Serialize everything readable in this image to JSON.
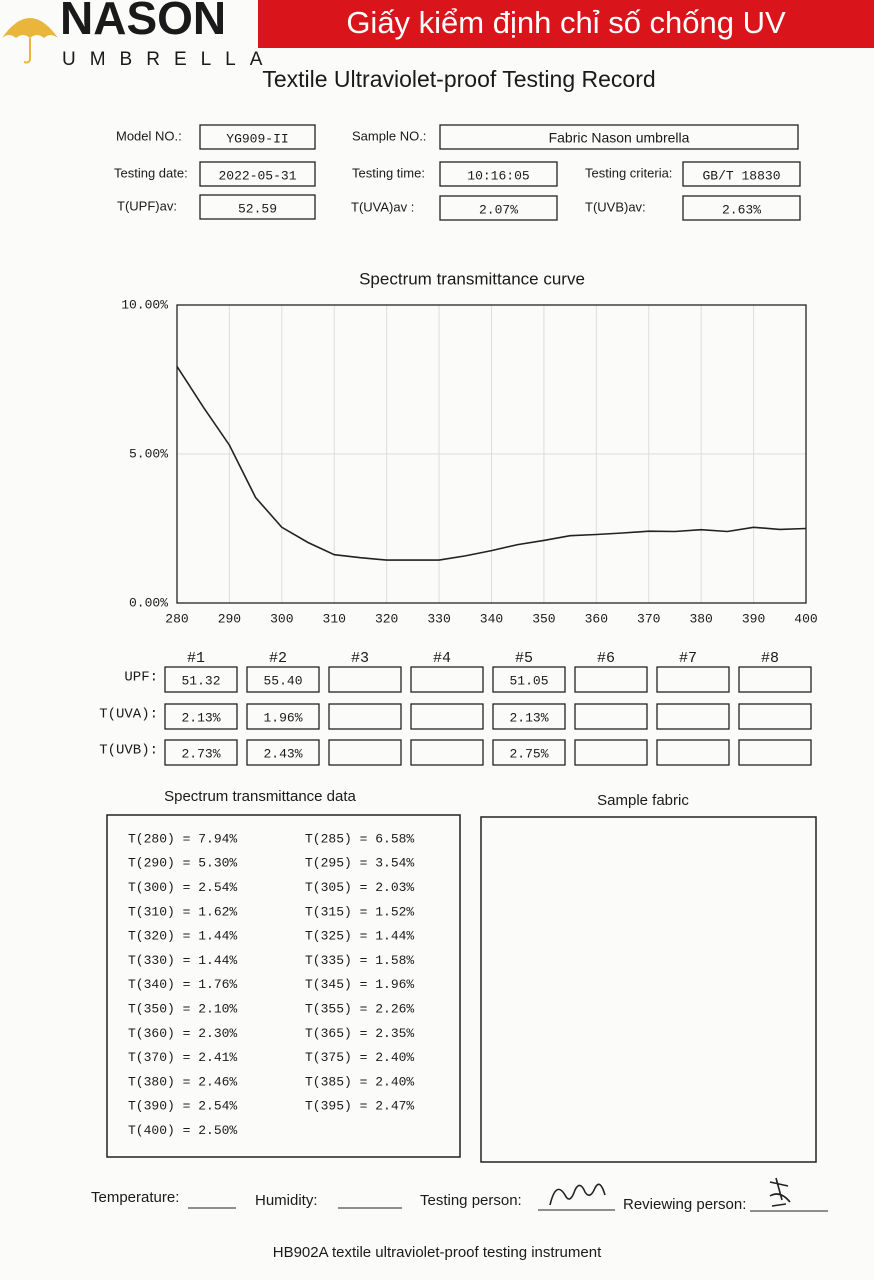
{
  "header": {
    "brand": "NASON",
    "brand_sub": "UMBRELLA",
    "banner": "Giấy kiểm định chỉ số chống UV"
  },
  "title": "Textile Ultraviolet-proof Testing Record",
  "fields": [
    {
      "label": "Model NO.:",
      "value": "YG909-II"
    },
    {
      "label": "Sample NO.:",
      "value": "Fabric Nason umbrella"
    },
    {
      "label": "Testing date:",
      "value": "2022-05-31"
    },
    {
      "label": "Testing time:",
      "value": "10:16:05"
    },
    {
      "label": "Testing criteria:",
      "value": "GB/T 18830"
    },
    {
      "label": "T(UPF)av:",
      "value": "52.59"
    },
    {
      "label": "T(UVA)av :",
      "value": "2.07%"
    },
    {
      "label": "T(UVB)av:",
      "value": "2.63%"
    }
  ],
  "chart_data": {
    "type": "line",
    "title": "Spectrum transmittance curve",
    "x": [
      280,
      285,
      290,
      295,
      300,
      305,
      310,
      315,
      320,
      325,
      330,
      335,
      340,
      345,
      350,
      355,
      360,
      365,
      370,
      375,
      380,
      385,
      390,
      395,
      400
    ],
    "values": [
      7.94,
      6.58,
      5.3,
      3.54,
      2.54,
      2.03,
      1.62,
      1.52,
      1.44,
      1.44,
      1.44,
      1.58,
      1.76,
      1.96,
      2.1,
      2.26,
      2.3,
      2.35,
      2.41,
      2.4,
      2.46,
      2.4,
      2.54,
      2.47,
      2.5
    ],
    "color": "#222222",
    "xlim": [
      280,
      400
    ],
    "xticks": [
      280,
      290,
      300,
      310,
      320,
      330,
      340,
      350,
      360,
      370,
      380,
      390,
      400
    ],
    "ylim": [
      0,
      10
    ],
    "yticks": [
      {
        "value": 0,
        "label": "0.00%"
      },
      {
        "value": 5,
        "label": "5.00%"
      },
      {
        "value": 10,
        "label": "10.00%"
      }
    ],
    "grid": true
  },
  "samples": {
    "columns": [
      "#1",
      "#2",
      "#3",
      "#4",
      "#5",
      "#6",
      "#7",
      "#8"
    ],
    "rows": [
      {
        "label": "UPF:",
        "values": [
          "51.32",
          "55.40",
          null,
          null,
          "51.05",
          null,
          null,
          null
        ]
      },
      {
        "label": "T(UVA):",
        "values": [
          "2.13%",
          "1.96%",
          null,
          null,
          "2.13%",
          null,
          null,
          null
        ]
      },
      {
        "label": "T(UVB):",
        "values": [
          "2.73%",
          "2.43%",
          null,
          null,
          "2.75%",
          null,
          null,
          null
        ]
      }
    ]
  },
  "data_section": {
    "title": "Spectrum transmittance data",
    "left": [
      "T(280) = 7.94%",
      "T(290) = 5.30%",
      "T(300) = 2.54%",
      "T(310) = 1.62%",
      "T(320) = 1.44%",
      "T(330) = 1.44%",
      "T(340) = 1.76%",
      "T(350) = 2.10%",
      "T(360) = 2.30%",
      "T(370) = 2.41%",
      "T(380) = 2.46%",
      "T(390) = 2.54%",
      "T(400) = 2.50%"
    ],
    "right": [
      "T(285) = 6.58%",
      "T(295) = 3.54%",
      "T(305) = 2.03%",
      "T(315) = 1.52%",
      "T(325) = 1.44%",
      "T(335) = 1.58%",
      "T(345) = 1.96%",
      "T(355) = 2.26%",
      "T(365) = 2.35%",
      "T(375) = 2.40%",
      "T(385) = 2.40%",
      "T(395) = 2.47%"
    ]
  },
  "sample_fabric": {
    "title": "Sample fabric"
  },
  "footer": {
    "temperature": "Temperature:",
    "humidity": "Humidity:",
    "testing_person": "Testing person:",
    "reviewing_person": "Reviewing person:",
    "instrument": "HB902A textile ultraviolet-proof testing instrument"
  }
}
